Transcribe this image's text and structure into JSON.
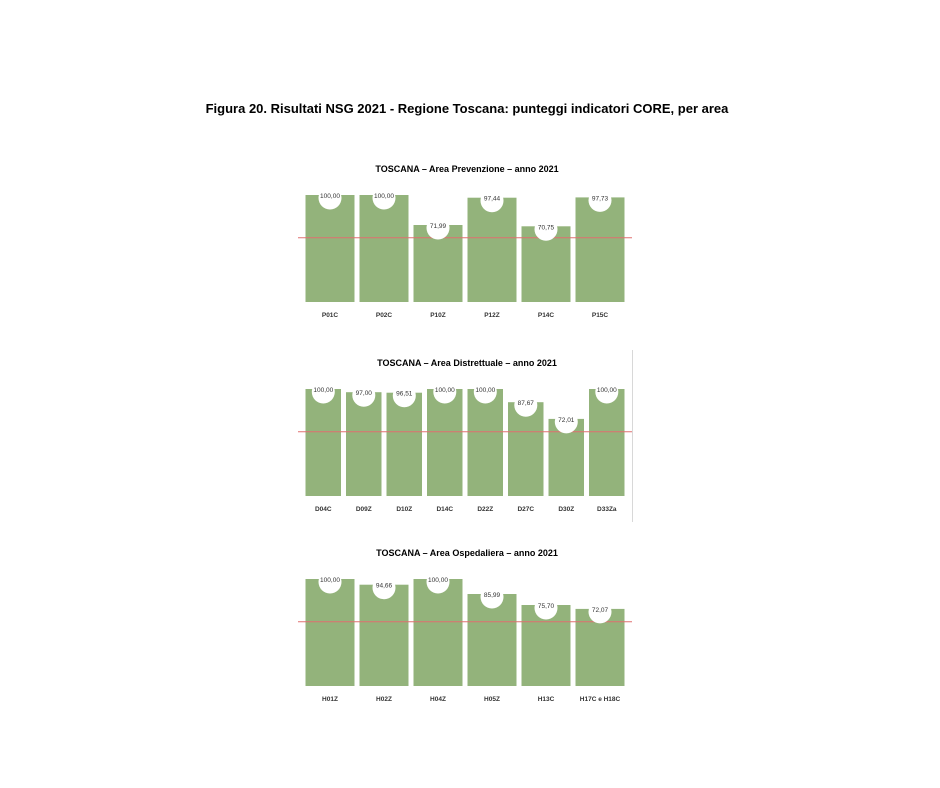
{
  "figure_title": "Figura 20. Risultati NSG 2021 - Regione Toscana: punteggi indicatori CORE, per area",
  "colors": {
    "bar": "#93b37b",
    "threshold_line": "#e07070",
    "label_bubble": "#ffffff"
  },
  "chart_data": [
    {
      "type": "bar",
      "title": "TOSCANA  – Area Prevenzione – anno 2021",
      "categories": [
        "P01C",
        "P02C",
        "P10Z",
        "P12Z",
        "P14C",
        "P15C"
      ],
      "values": [
        100.0,
        100.0,
        71.99,
        97.44,
        70.75,
        97.73
      ],
      "value_labels": [
        "100,00",
        "100,00",
        "71,99",
        "97,44",
        "70,75",
        "97,73"
      ],
      "threshold": 60,
      "ylim": [
        0,
        100
      ],
      "grid": false
    },
    {
      "type": "bar",
      "title": "TOSCANA  – Area Distrettuale – anno 2021",
      "categories": [
        "D04C",
        "D09Z",
        "D10Z",
        "D14C",
        "D22Z",
        "D27C",
        "D30Z",
        "D33Za"
      ],
      "values": [
        100.0,
        97.0,
        96.51,
        100.0,
        100.0,
        87.67,
        72.01,
        100.0
      ],
      "value_labels": [
        "100,00",
        "97,00",
        "96,51",
        "100,00",
        "100,00",
        "87,67",
        "72,01",
        "100,00"
      ],
      "threshold": 60,
      "ylim": [
        0,
        100
      ],
      "grid": false
    },
    {
      "type": "bar",
      "title": "TOSCANA  – Area Ospedaliera – anno 2021",
      "categories": [
        "H01Z",
        "H02Z",
        "H04Z",
        "H05Z",
        "H13C",
        "H17C e H18C"
      ],
      "values": [
        100.0,
        94.66,
        100.0,
        85.99,
        75.7,
        72.07
      ],
      "value_labels": [
        "100,00",
        "94,66",
        "100,00",
        "85,99",
        "75,70",
        "72,07"
      ],
      "threshold": 60,
      "ylim": [
        0,
        100
      ],
      "grid": false
    }
  ]
}
